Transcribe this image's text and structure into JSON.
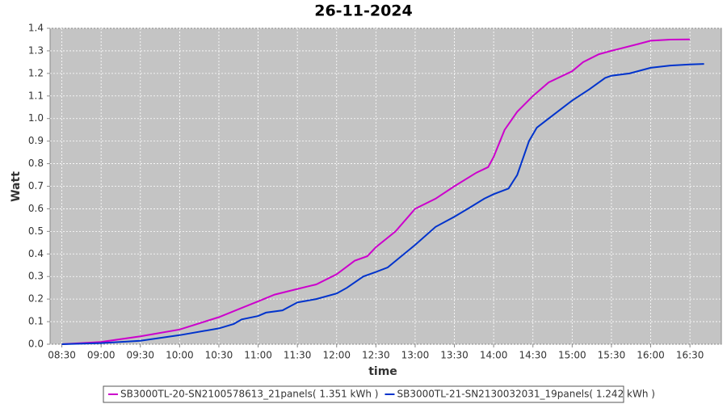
{
  "chart_data": {
    "type": "line",
    "title": "26-11-2024",
    "x_label": "time",
    "y_label": "Watt",
    "xlim": [
      8.35,
      16.9
    ],
    "ylim": [
      0,
      1.4
    ],
    "xticks": [
      {
        "value": 8.5,
        "label": "08:30"
      },
      {
        "value": 9,
        "label": "09:00"
      },
      {
        "value": 9.5,
        "label": "09:30"
      },
      {
        "value": 10,
        "label": "10:00"
      },
      {
        "value": 10.5,
        "label": "10:30"
      },
      {
        "value": 11,
        "label": "11:00"
      },
      {
        "value": 11.5,
        "label": "11:30"
      },
      {
        "value": 12,
        "label": "12:00"
      },
      {
        "value": 12.5,
        "label": "12:30"
      },
      {
        "value": 13,
        "label": "13:00"
      },
      {
        "value": 13.5,
        "label": "13:30"
      },
      {
        "value": 14,
        "label": "14:00"
      },
      {
        "value": 14.5,
        "label": "14:30"
      },
      {
        "value": 15,
        "label": "15:00"
      },
      {
        "value": 15.5,
        "label": "15:30"
      },
      {
        "value": 16,
        "label": "16:00"
      },
      {
        "value": 16.5,
        "label": "16:30"
      }
    ],
    "yticks": [
      {
        "value": 0,
        "label": "0.0"
      },
      0.1,
      0.2,
      0.3,
      0.4,
      0.5,
      0.6,
      0.7,
      0.8,
      0.9,
      {
        "value": 1,
        "label": "1.0"
      },
      1.1,
      1.2,
      1.3,
      1.4
    ],
    "grid": true,
    "series": [
      {
        "name": "SB3000TL-20-SN2100578613_21panels( 1.351 kWh )",
        "color": "#cc00cc",
        "x": [
          8.5,
          9.0,
          9.5,
          10.0,
          10.5,
          11.0,
          11.21,
          11.5,
          11.74,
          12.0,
          12.23,
          12.39,
          12.5,
          12.75,
          13.0,
          13.26,
          13.5,
          13.78,
          13.93,
          14.0,
          14.14,
          14.3,
          14.5,
          14.7,
          15.0,
          15.14,
          15.34,
          15.5,
          15.84,
          16.0,
          16.25,
          16.5
        ],
        "values": [
          0,
          0.01,
          0.035,
          0.065,
          0.12,
          0.19,
          0.22,
          0.245,
          0.265,
          0.31,
          0.37,
          0.39,
          0.43,
          0.5,
          0.6,
          0.645,
          0.7,
          0.76,
          0.785,
          0.83,
          0.95,
          1.03,
          1.1,
          1.16,
          1.21,
          1.25,
          1.285,
          1.3,
          1.33,
          1.345,
          1.35,
          1.351
        ]
      },
      {
        "name": "SB3000TL-21-SN2130032031_19panels( 1.242 kWh )",
        "color": "#0033cc",
        "x": [
          8.5,
          9.0,
          9.5,
          10.0,
          10.5,
          10.69,
          10.79,
          11.0,
          11.1,
          11.31,
          11.5,
          11.74,
          12.0,
          12.13,
          12.34,
          12.5,
          12.65,
          13.0,
          13.26,
          13.5,
          13.67,
          13.88,
          14.0,
          14.19,
          14.3,
          14.45,
          14.55,
          14.7,
          15.0,
          15.22,
          15.42,
          15.5,
          15.73,
          16.0,
          16.25,
          16.5,
          16.68
        ],
        "values": [
          0,
          0.005,
          0.015,
          0.04,
          0.07,
          0.09,
          0.11,
          0.125,
          0.14,
          0.15,
          0.185,
          0.2,
          0.225,
          0.25,
          0.3,
          0.32,
          0.34,
          0.44,
          0.52,
          0.565,
          0.6,
          0.645,
          0.665,
          0.69,
          0.75,
          0.9,
          0.96,
          1.0,
          1.08,
          1.13,
          1.18,
          1.19,
          1.2,
          1.225,
          1.235,
          1.24,
          1.242
        ]
      }
    ]
  }
}
